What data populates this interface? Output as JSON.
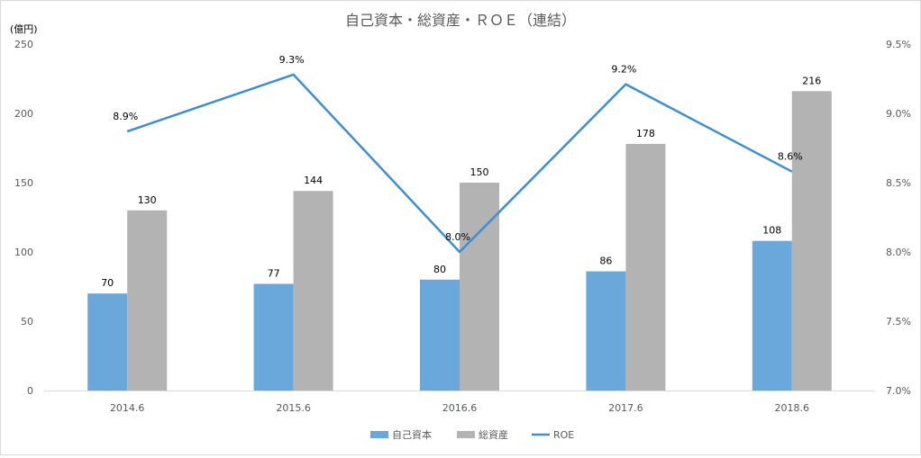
{
  "chart_data": {
    "type": "bar",
    "title": "自己資本・総資産・ＲＯＥ（連結）",
    "ylabel": "(億円)",
    "categories": [
      "2014.6",
      "2015.6",
      "2016.6",
      "2017.6",
      "2018.6"
    ],
    "ylim": [
      0,
      250
    ],
    "yticks": [
      0,
      50,
      100,
      150,
      200,
      250
    ],
    "y2lim": [
      7.0,
      9.5
    ],
    "y2ticks": [
      "7.0%",
      "7.5%",
      "8.0%",
      "8.5%",
      "9.0%",
      "9.5%"
    ],
    "series": [
      {
        "name": "自己資本",
        "type": "bar",
        "axis": "left",
        "color": "#6aa8dc",
        "values": [
          70,
          77,
          80,
          86,
          108
        ]
      },
      {
        "name": "総資産",
        "type": "bar",
        "axis": "left",
        "color": "#b3b3b3",
        "values": [
          130,
          144,
          150,
          178,
          216
        ]
      },
      {
        "name": "ROE",
        "type": "line",
        "axis": "right",
        "color": "#3e8fd0",
        "values": [
          8.87,
          9.28,
          8.0,
          9.21,
          8.58
        ],
        "labels": [
          "8.9%",
          "9.3%",
          "8.0%",
          "9.2%",
          "8.6%"
        ]
      }
    ],
    "legend": "bottom",
    "grid": false
  }
}
